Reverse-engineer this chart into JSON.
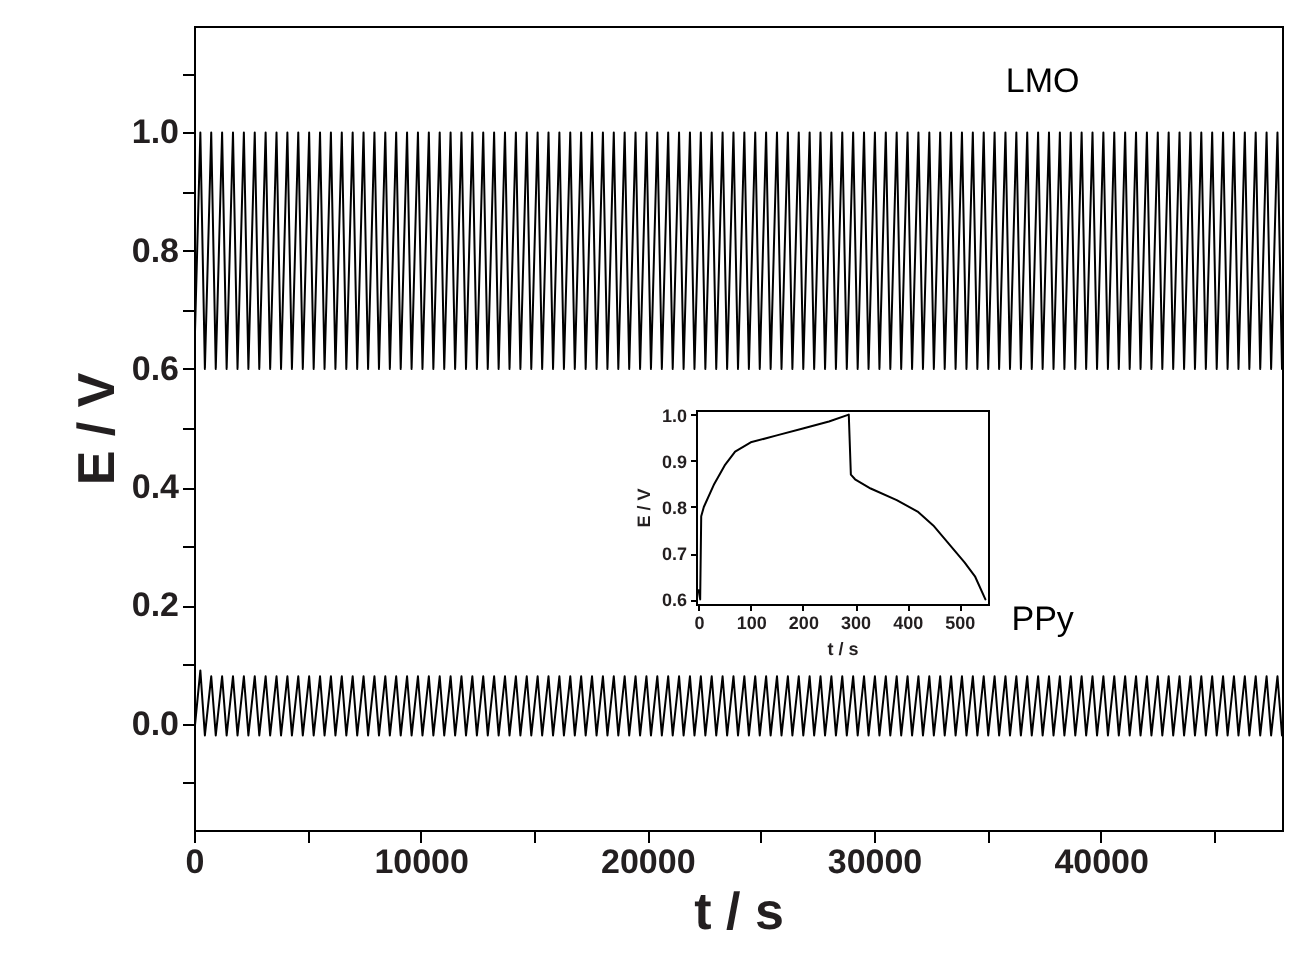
{
  "chart_data": [
    {
      "type": "line",
      "xlabel": "t / s",
      "ylabel": "E / V",
      "xlim": [
        0,
        48000
      ],
      "ylim": [
        -0.18,
        1.18
      ],
      "xticks": [
        0,
        {
          "value": 5000,
          "label": null
        },
        10000,
        {
          "value": 15000,
          "label": null
        },
        20000,
        {
          "value": 25000,
          "label": null
        },
        30000,
        {
          "value": 35000,
          "label": null
        },
        40000,
        {
          "value": 45000,
          "label": null
        }
      ],
      "yticks": [
        {
          "value": -0.1,
          "label": null
        },
        {
          "value": 0,
          "label": "0.0"
        },
        {
          "value": 0.1,
          "label": null
        },
        0.2,
        {
          "value": 0.3,
          "label": null
        },
        0.4,
        {
          "value": 0.5,
          "label": null
        },
        0.6,
        {
          "value": 0.7,
          "label": null
        },
        0.8,
        {
          "value": 0.9,
          "label": null
        },
        {
          "value": 1,
          "label": "1.0"
        },
        {
          "value": 1.1,
          "label": null
        }
      ],
      "grid": false,
      "legend": false,
      "x": [
        0,
        280,
        480,
        760,
        960,
        1240,
        1440,
        1720,
        1920,
        2200,
        2400,
        2680,
        2880,
        3160,
        3360,
        3640,
        3840,
        4120,
        4320,
        4600,
        4800,
        5080,
        5280,
        5560,
        5760,
        6040,
        6240,
        6520,
        6720,
        7000,
        7200,
        7480,
        7680,
        7960,
        8160,
        8440,
        8640,
        8920,
        9120,
        9400,
        9600,
        9880,
        10080,
        10360,
        10560,
        10840,
        11040,
        11320,
        11520,
        11800,
        12000,
        12280,
        12480,
        12760,
        12960,
        13240,
        13440,
        13720,
        13920,
        14200,
        14400,
        14680,
        14880,
        15160,
        15360,
        15640,
        15840,
        16120,
        16320,
        16600,
        16800,
        17080,
        17280,
        17560,
        17760,
        18040,
        18240,
        18520,
        18720,
        19000,
        19200,
        19480,
        19680,
        19960,
        20160,
        20440,
        20640,
        20920,
        21120,
        21400,
        21600,
        21880,
        22080,
        22360,
        22560,
        22840,
        23040,
        23320,
        23520,
        23800,
        24000,
        24280,
        24480,
        24760,
        24960,
        25240,
        25440,
        25720,
        25920,
        26200,
        26400,
        26680,
        26880,
        27160,
        27360,
        27640,
        27840,
        28120,
        28320,
        28600,
        28800,
        29080,
        29280,
        29560,
        29760,
        30040,
        30240,
        30520,
        30720,
        31000,
        31200,
        31480,
        31680,
        31960,
        32160,
        32440,
        32640,
        32920,
        33120,
        33400,
        33600,
        33880,
        34080,
        34360,
        34560,
        34840,
        35040,
        35320,
        35520,
        35800,
        36000,
        36280,
        36480,
        36760,
        36960,
        37240,
        37440,
        37720,
        37920,
        38200,
        38400,
        38680,
        38880,
        39160,
        39360,
        39640,
        39840,
        40120,
        40320,
        40600,
        40800,
        41080,
        41280,
        41560,
        41760,
        42040,
        42240,
        42520,
        42720,
        43000,
        43200,
        43480,
        43680,
        43960,
        44160,
        44440,
        44640,
        44920,
        45120,
        45400,
        45600,
        45880,
        46080,
        46360,
        46560,
        46840,
        47040,
        47320,
        47520,
        47800,
        48000
      ],
      "series": [
        {
          "name": "LMO",
          "color": "#000000",
          "values": [
            0.6,
            1.0,
            0.6,
            1.0,
            0.6,
            1.0,
            0.6,
            1.0,
            0.6,
            1.0,
            0.6,
            1.0,
            0.6,
            1.0,
            0.6,
            1.0,
            0.6,
            1.0,
            0.6,
            1.0,
            0.6,
            1.0,
            0.6,
            1.0,
            0.6,
            1.0,
            0.6,
            1.0,
            0.6,
            1.0,
            0.6,
            1.0,
            0.6,
            1.0,
            0.6,
            1.0,
            0.6,
            1.0,
            0.6,
            1.0,
            0.6,
            1.0,
            0.6,
            1.0,
            0.6,
            1.0,
            0.6,
            1.0,
            0.6,
            1.0,
            0.6,
            1.0,
            0.6,
            1.0,
            0.6,
            1.0,
            0.6,
            1.0,
            0.6,
            1.0,
            0.6,
            1.0,
            0.6,
            1.0,
            0.6,
            1.0,
            0.6,
            1.0,
            0.6,
            1.0,
            0.6,
            1.0,
            0.6,
            1.0,
            0.6,
            1.0,
            0.6,
            1.0,
            0.6,
            1.0,
            0.6,
            1.0,
            0.6,
            1.0,
            0.6,
            1.0,
            0.6,
            1.0,
            0.6,
            1.0,
            0.6,
            1.0,
            0.6,
            1.0,
            0.6,
            1.0,
            0.6,
            1.0,
            0.6,
            1.0,
            0.6,
            1.0,
            0.6,
            1.0,
            0.6,
            1.0,
            0.6,
            1.0,
            0.6,
            1.0,
            0.6,
            1.0,
            0.6,
            1.0,
            0.6,
            1.0,
            0.6,
            1.0,
            0.6,
            1.0,
            0.6,
            1.0,
            0.6,
            1.0,
            0.6,
            1.0,
            0.6,
            1.0,
            0.6,
            1.0,
            0.6,
            1.0,
            0.6,
            1.0,
            0.6,
            1.0,
            0.6,
            1.0,
            0.6,
            1.0,
            0.6,
            1.0,
            0.6,
            1.0,
            0.6,
            1.0,
            0.6,
            1.0,
            0.6,
            1.0,
            0.6,
            1.0,
            0.6,
            1.0,
            0.6,
            1.0,
            0.6,
            1.0,
            0.6,
            1.0,
            0.6,
            1.0,
            0.6,
            1.0,
            0.6,
            1.0,
            0.6,
            1.0,
            0.6,
            1.0,
            0.6,
            1.0,
            0.6,
            1.0,
            0.6,
            1.0,
            0.6,
            1.0,
            0.6,
            1.0,
            0.6,
            1.0,
            0.6,
            1.0,
            0.6,
            1.0,
            0.6,
            1.0,
            0.6,
            1.0,
            0.6,
            1.0,
            0.6,
            1.0,
            0.6,
            1.0,
            0.6,
            1.0,
            0.6,
            1.0,
            0.6
          ]
        },
        {
          "name": "PPy",
          "color": "#000000",
          "values": [
            -0.02,
            0.09,
            -0.02,
            0.08,
            -0.02,
            0.08,
            -0.02,
            0.08,
            -0.02,
            0.08,
            -0.02,
            0.08,
            -0.02,
            0.08,
            -0.02,
            0.08,
            -0.02,
            0.08,
            -0.02,
            0.08,
            -0.02,
            0.08,
            -0.02,
            0.08,
            -0.02,
            0.08,
            -0.02,
            0.08,
            -0.02,
            0.08,
            -0.02,
            0.08,
            -0.02,
            0.08,
            -0.02,
            0.08,
            -0.02,
            0.08,
            -0.02,
            0.08,
            -0.02,
            0.08,
            -0.02,
            0.08,
            -0.02,
            0.08,
            -0.02,
            0.08,
            -0.02,
            0.08,
            -0.02,
            0.08,
            -0.02,
            0.08,
            -0.02,
            0.08,
            -0.02,
            0.08,
            -0.02,
            0.08,
            -0.02,
            0.08,
            -0.02,
            0.08,
            -0.02,
            0.08,
            -0.02,
            0.08,
            -0.02,
            0.08,
            -0.02,
            0.08,
            -0.02,
            0.08,
            -0.02,
            0.08,
            -0.02,
            0.08,
            -0.02,
            0.08,
            -0.02,
            0.08,
            -0.02,
            0.08,
            -0.02,
            0.08,
            -0.02,
            0.08,
            -0.02,
            0.08,
            -0.02,
            0.08,
            -0.02,
            0.08,
            -0.02,
            0.08,
            -0.02,
            0.08,
            -0.02,
            0.08,
            -0.02,
            0.08,
            -0.02,
            0.08,
            -0.02,
            0.08,
            -0.02,
            0.08,
            -0.02,
            0.08,
            -0.02,
            0.08,
            -0.02,
            0.08,
            -0.02,
            0.08,
            -0.02,
            0.08,
            -0.02,
            0.08,
            -0.02,
            0.08,
            -0.02,
            0.08,
            -0.02,
            0.08,
            -0.02,
            0.08,
            -0.02,
            0.08,
            -0.02,
            0.08,
            -0.02,
            0.08,
            -0.02,
            0.08,
            -0.02,
            0.08,
            -0.02,
            0.08,
            -0.02,
            0.08,
            -0.02,
            0.08,
            -0.02,
            0.08,
            -0.02,
            0.08,
            -0.02,
            0.08,
            -0.02,
            0.08,
            -0.02,
            0.08,
            -0.02,
            0.08,
            -0.02,
            0.08,
            -0.02,
            0.08,
            -0.02,
            0.08,
            -0.02,
            0.08,
            -0.02,
            0.08,
            -0.02,
            0.08,
            -0.02,
            0.08,
            -0.02,
            0.08,
            -0.02,
            0.08,
            -0.02,
            0.08,
            -0.02,
            0.08,
            -0.02,
            0.08,
            -0.02,
            0.08,
            -0.02,
            0.08,
            -0.02,
            0.08,
            -0.02,
            0.08,
            -0.02,
            0.08,
            -0.02,
            0.08,
            -0.02,
            0.08,
            -0.02,
            0.08,
            -0.02,
            0.08,
            -0.02,
            0.08,
            -0.02
          ]
        }
      ]
    },
    {
      "type": "line",
      "xlabel": "t / s",
      "ylabel": "E / V",
      "xlim": [
        -5,
        555
      ],
      "ylim": [
        0.59,
        1.01
      ],
      "xticks": [
        0,
        100,
        200,
        300,
        400,
        500
      ],
      "yticks": [
        0.6,
        0.7,
        0.8,
        0.9,
        {
          "value": 1,
          "label": "1.0"
        }
      ],
      "grid": false,
      "legend": false,
      "x": [
        0,
        3,
        5,
        10,
        30,
        50,
        70,
        100,
        150,
        200,
        250,
        288,
        292,
        300,
        330,
        380,
        420,
        450,
        480,
        510,
        530,
        550
      ],
      "series": [
        {
          "color": "#000000",
          "values": [
            0.62,
            0.6,
            0.78,
            0.8,
            0.85,
            0.89,
            0.92,
            0.94,
            0.955,
            0.97,
            0.985,
            1.0,
            0.87,
            0.86,
            0.84,
            0.815,
            0.79,
            0.76,
            0.72,
            0.68,
            0.65,
            0.6
          ]
        }
      ]
    }
  ]
}
